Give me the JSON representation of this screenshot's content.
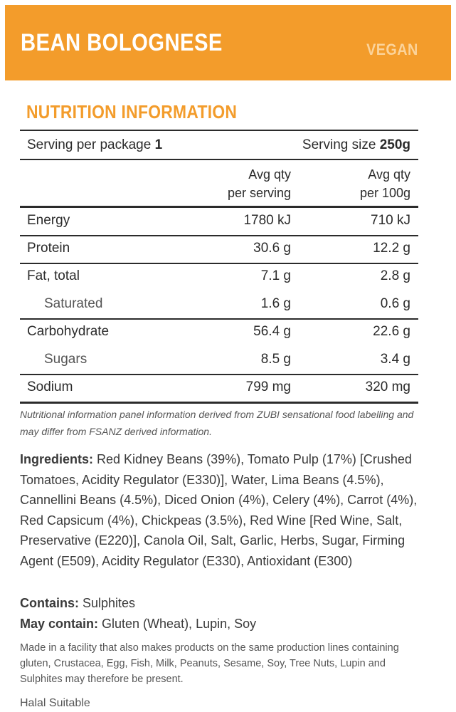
{
  "product": {
    "name": "BEAN BOLOGNESE",
    "badge": "VEGAN"
  },
  "nutrition": {
    "heading": "NUTRITION INFORMATION",
    "serving_per_package_label": "Serving per package",
    "serving_per_package_value": "1",
    "serving_size_label": "Serving size",
    "serving_size_value": "250g",
    "col1_header_line1": "Avg qty",
    "col1_header_line2": "per serving",
    "col2_header_line1": "Avg qty",
    "col2_header_line2": "per 100g",
    "rows": [
      {
        "name": "Energy",
        "per_serving": "1780 kJ",
        "per_100g": "710 kJ"
      },
      {
        "name": "Protein",
        "per_serving": "30.6 g",
        "per_100g": "12.2 g"
      },
      {
        "name": "Fat, total",
        "per_serving": "7.1 g",
        "per_100g": "2.8 g"
      },
      {
        "name": "Saturated",
        "per_serving": "1.6 g",
        "per_100g": "0.6 g"
      },
      {
        "name": "Carbohydrate",
        "per_serving": "56.4 g",
        "per_100g": "22.6 g"
      },
      {
        "name": "Sugars",
        "per_serving": "8.5 g",
        "per_100g": "3.4 g"
      },
      {
        "name": "Sodium",
        "per_serving": "799 mg",
        "per_100g": "320 mg"
      }
    ],
    "note": "Nutritional information panel information derived from ZUBI sensational food labelling and may differ from FSANZ derived information."
  },
  "ingredients": {
    "label": "Ingredients:",
    "text": " Red Kidney Beans (39%), Tomato Pulp (17%) [Crushed Tomatoes, Acidity Regulator (E330)], Water, Lima Beans (4.5%), Cannellini Beans (4.5%), Diced Onion (4%), Celery (4%), Carrot (4%), Red Capsicum (4%), Chickpeas (3.5%), Red Wine [Red Wine, Salt, Preservative (E220)], Canola Oil, Salt, Garlic, Herbs, Sugar, Firming Agent (E509), Acidity Regulator (E330), Antioxidant (E300)"
  },
  "allergens": {
    "contains_label": "Contains:",
    "contains_value": " Sulphites",
    "may_contain_label": "May contain:",
    "may_contain_value": " Gluten (Wheat), Lupin, Soy"
  },
  "facility_statement": "Made in a facility that also makes products on the same production lines containing gluten, Crustacea, Egg, Fish, Milk, Peanuts, Sesame, Soy, Tree Nuts, Lupin and Sulphites may therefore be present.",
  "halal": "Halal Suitable",
  "colors": {
    "brand_orange": "#f39c2b",
    "badge_text": "#fbd39a",
    "text": "#2b2b2b"
  }
}
